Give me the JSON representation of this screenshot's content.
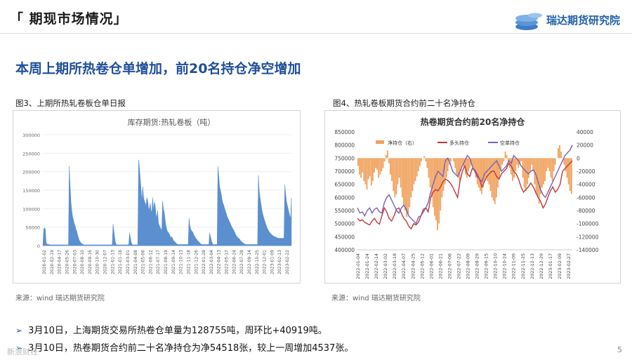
{
  "header": {
    "title": "「 期现市场情况」",
    "brand": "瑞达期货研究院"
  },
  "subtitle": "本周上期所热卷仓单增加，前20名持仓净空增加",
  "fig3": {
    "caption": "图3、上期所热轧卷板仓单日报",
    "source": "来源：wind   瑞达期货研究院"
  },
  "fig4": {
    "caption": "图4、热轧卷板期货合约前二十名净持仓",
    "source": "来源：wind   瑞达期货研究院"
  },
  "bullets": [
    "3月10日，上海期货交易所热卷仓单量为128755吨，周环比+40919吨。",
    "3月10日，热卷期货合约前二十名净持仓为净54518张，较上一周增加4537张。"
  ],
  "page_number": "5",
  "watermark": "新浪财经",
  "chart_data": [
    {
      "type": "area",
      "title": "库存期货:热轧卷板（吨）",
      "ylim": [
        0,
        300000
      ],
      "yticks": [
        "0",
        "50000",
        "100000",
        "150000",
        "200000",
        "250000",
        "300000"
      ],
      "x_ticks": [
        "2020-01-02",
        "2020-02-19",
        "2020-04-17",
        "2020-05-26",
        "2020-07-03",
        "2020-08-10",
        "2020-09-16",
        "2020-10-30",
        "2020-12-07",
        "2021-01-13",
        "2021-01-18",
        "2021-03-01",
        "2021-04-08",
        "2021-05-06",
        "2021-06-12",
        "2021-07-17",
        "2021-08-19",
        "2021-09-14",
        "2021-10-13",
        "2021-11-18",
        "2021-12-26",
        "2022-01-28",
        "2022-03-04",
        "2022-04-13",
        "2022-05-17",
        "2022-06-24",
        "2022-07-28",
        "2022-09-14",
        "2022-10-25",
        "2022-12-01",
        "2023-01-09",
        "2023-02-13",
        "2023-02-22"
      ],
      "color": "#5b8fcf",
      "values": [
        0,
        45000,
        48000,
        45000,
        8000,
        5000,
        3000,
        3000,
        3000,
        2000,
        2000,
        2000,
        2000,
        2000,
        2000,
        2000,
        2000,
        2000,
        2000,
        2000,
        2000,
        2000,
        2000,
        2000,
        2000,
        2000,
        2000,
        2000,
        2000,
        2000,
        2000,
        2000,
        215000,
        165000,
        120000,
        95000,
        80000,
        70000,
        60000,
        55000,
        45000,
        40000,
        30000,
        22000,
        15000,
        12000,
        8000,
        5000,
        4000,
        3000,
        2000,
        2000,
        2000,
        2000,
        2000,
        2000,
        2000,
        2000,
        2000,
        2000,
        2000,
        2000,
        2000,
        2000,
        2000,
        2000,
        2000,
        2000,
        2000,
        2000,
        2000,
        2000,
        2000,
        2000,
        2000,
        2000,
        2000,
        2000,
        2000,
        2000,
        2000,
        2000,
        2000,
        2000,
        2000,
        58000,
        42000,
        22000,
        8000,
        3000,
        2000,
        2000,
        2000,
        2000,
        2000,
        2000,
        2000,
        2000,
        2000,
        2000,
        2000,
        2000,
        2000,
        2000,
        2000,
        35000,
        22000,
        10000,
        3000,
        2000,
        2000,
        2000,
        2000,
        2000,
        2000,
        2000,
        232000,
        210000,
        180000,
        150000,
        120000,
        160000,
        130000,
        120000,
        115000,
        108000,
        130000,
        120000,
        102000,
        98000,
        115000,
        95000,
        90000,
        130000,
        95000,
        118000,
        110000,
        85000,
        75000,
        95000,
        60000,
        55000,
        50000,
        45000,
        42000,
        120000,
        100000,
        90000,
        70000,
        55000,
        45000,
        38000,
        35000,
        32000,
        28000,
        20000,
        25000,
        20000,
        15000,
        12000,
        10000,
        8000,
        5000,
        4000,
        3000,
        3000,
        3000,
        3000,
        3000,
        3000,
        3000,
        3000,
        3000,
        3000,
        3000,
        3000,
        3000,
        75000,
        55000,
        45000,
        40000,
        38000,
        35000,
        28000,
        25000,
        20000,
        18000,
        15000,
        12000,
        10000,
        8000,
        5000,
        4000,
        3000,
        3000,
        3000,
        3000,
        3000,
        3000,
        3000,
        3000,
        3000,
        35000,
        25000,
        15000,
        8000,
        3000,
        3000,
        3000,
        3000,
        3000,
        3000,
        215000,
        190000,
        160000,
        150000,
        140000,
        125000,
        115000,
        110000,
        102000,
        95000,
        88000,
        80000,
        75000,
        70000,
        65000,
        60000,
        55000,
        50000,
        46000,
        42000,
        38000,
        32000,
        28000,
        25000,
        22000,
        20000,
        18000,
        15000,
        12000,
        10000,
        8000,
        6000,
        5000,
        4000,
        3000,
        3000,
        3000,
        3000,
        3000,
        3000,
        3000,
        3000,
        3000,
        3000,
        3000,
        3000,
        3000,
        3000,
        3000,
        190000,
        150000,
        130000,
        115000,
        100000,
        88000,
        80000,
        72000,
        65000,
        58000,
        52000,
        46000,
        42000,
        38000,
        35000,
        32000,
        30000,
        28000,
        26000,
        25000,
        24000,
        23000,
        22000,
        21000,
        20000,
        20000,
        20000,
        20000,
        20000,
        20000,
        20000,
        20000,
        165000,
        140000,
        120000,
        110000,
        100000,
        90000,
        80000,
        75000,
        128755
      ]
    },
    {
      "type": "line",
      "title": "热卷期货合约前20名净持仓",
      "ylim_left": [
        400000,
        850000
      ],
      "ylim_right": [
        -140000,
        40000
      ],
      "yticks_left": [
        "850000",
        "800000",
        "750000",
        "700000",
        "650000",
        "600000",
        "550000",
        "500000",
        "450000",
        "400000"
      ],
      "yticks_right": [
        "40000",
        "20000",
        "0",
        "-20000",
        "-40000",
        "-60000",
        "-80000",
        "-100000",
        "-120000",
        "-140000"
      ],
      "x_ticks": [
        "2022-01-04",
        "2022-01-24",
        "2022-02-14",
        "2022-03-02",
        "2022-03-18",
        "2022-04-07",
        "2022-04-25",
        "2022-05-12",
        "2022-06-01",
        "2022-06-21",
        "2022-07-06",
        "2022-07-22",
        "2022-08-09",
        "2022-08-29",
        "2022-09-15",
        "2022-10-10",
        "2022-10-24",
        "2022-11-09",
        "2022-11-25",
        "2022-12-13",
        "2022-12-29",
        "2023-01-17",
        "2023-02-09",
        "2023-02-27"
      ],
      "series": [
        {
          "name": "净持仓（右）",
          "color": "#f0a05a",
          "type": "bar",
          "values": [
            -12000,
            -25000,
            -30000,
            -22000,
            -35000,
            -40000,
            -48000,
            -32000,
            -28000,
            -42000,
            -35000,
            -22000,
            -15000,
            -18000,
            -30000,
            -25000,
            -20000,
            -15000,
            -5000,
            5000,
            12000,
            -8000,
            -25000,
            -35000,
            -50000,
            -60000,
            -55000,
            -40000,
            -30000,
            -45000,
            -60000,
            -72000,
            -80000,
            -90000,
            -85000,
            -75000,
            -60000,
            -50000,
            -40000,
            -35000,
            -28000,
            -20000,
            -12000,
            -5000,
            0,
            3000,
            -5000,
            -15000,
            -30000,
            -45000,
            -60000,
            -75000,
            -88000,
            -95000,
            -110000,
            -100000,
            -80000,
            -60000,
            -50000,
            -40000,
            -30000,
            -20000,
            -10000,
            -5000,
            0,
            -5000,
            -15000,
            -25000,
            -30000,
            -35000,
            -20000,
            -10000,
            -15000,
            -25000,
            -30000,
            -20000,
            -15000,
            -10000,
            -15000,
            -20000,
            -30000,
            -40000,
            -45000,
            -50000,
            -55000,
            -45000,
            -35000,
            -30000,
            -35000,
            -40000,
            -50000,
            -60000,
            -65000,
            -70000,
            -60000,
            -45000,
            -30000,
            -20000,
            -10000,
            -5000,
            10000,
            5000,
            -5000,
            -15000,
            -25000,
            -35000,
            -30000,
            -20000,
            -10000,
            -15000,
            -10000,
            -5000,
            -30000,
            -45000,
            -50000,
            -40000,
            -30000,
            -20000,
            -10000,
            -20000,
            -40000,
            -55000,
            -60000,
            -70000,
            -55000,
            -45000,
            -40000,
            -35000,
            -20000,
            -15000,
            -20000,
            -30000,
            -35000,
            -20000,
            -10000,
            0,
            15000,
            20000,
            10000,
            0,
            -10000,
            -20000,
            -30000,
            -40000,
            -50000,
            -54518
          ]
        },
        {
          "name": "多头持仓",
          "color": "#c0393b",
          "type": "line",
          "values": [
            520000,
            510000,
            515000,
            505000,
            500000,
            495000,
            510000,
            520000,
            505000,
            498000,
            530000,
            560000,
            545000,
            520000,
            510000,
            530000,
            555000,
            560000,
            540000,
            520000,
            510000,
            490000,
            480000,
            500000,
            495000,
            505000,
            530000,
            555000,
            560000,
            545000,
            600000,
            620000,
            630000,
            625000,
            640000,
            660000,
            670000,
            665000,
            655000,
            640000,
            620000,
            600000,
            660000,
            700000,
            720000,
            690000,
            680000,
            710000,
            705000,
            690000,
            670000,
            640000,
            660000,
            680000,
            690000,
            700000,
            700000,
            680000,
            670000,
            690000,
            700000,
            710000,
            730000,
            720000,
            700000,
            690000,
            670000,
            640000,
            620000,
            630000,
            640000,
            655000,
            640000,
            620000,
            600000,
            585000,
            560000,
            575000,
            600000,
            625000,
            640000,
            620000,
            630000,
            650000,
            700000,
            710000,
            720000,
            730000,
            740000
          ]
        },
        {
          "name": "空单持仓",
          "color": "#7b5fb5",
          "type": "line",
          "values": [
            560000,
            540000,
            545000,
            530000,
            550000,
            560000,
            540000,
            555000,
            560000,
            545000,
            540000,
            580000,
            600000,
            610000,
            590000,
            570000,
            550000,
            540000,
            560000,
            570000,
            555000,
            530000,
            520000,
            510000,
            500000,
            525000,
            530000,
            545000,
            560000,
            580000,
            620000,
            650000,
            680000,
            700000,
            690000,
            680000,
            740000,
            750000,
            730000,
            700000,
            690000,
            680000,
            700000,
            720000,
            740000,
            760000,
            750000,
            720000,
            700000,
            680000,
            670000,
            660000,
            690000,
            700000,
            710000,
            720000,
            730000,
            740000,
            720000,
            700000,
            710000,
            720000,
            740000,
            730000,
            760000,
            750000,
            740000,
            720000,
            710000,
            700000,
            690000,
            700000,
            705000,
            690000,
            660000,
            630000,
            610000,
            600000,
            620000,
            640000,
            660000,
            680000,
            700000,
            720000,
            740000,
            760000,
            770000,
            780000,
            800000
          ]
        }
      ]
    }
  ]
}
